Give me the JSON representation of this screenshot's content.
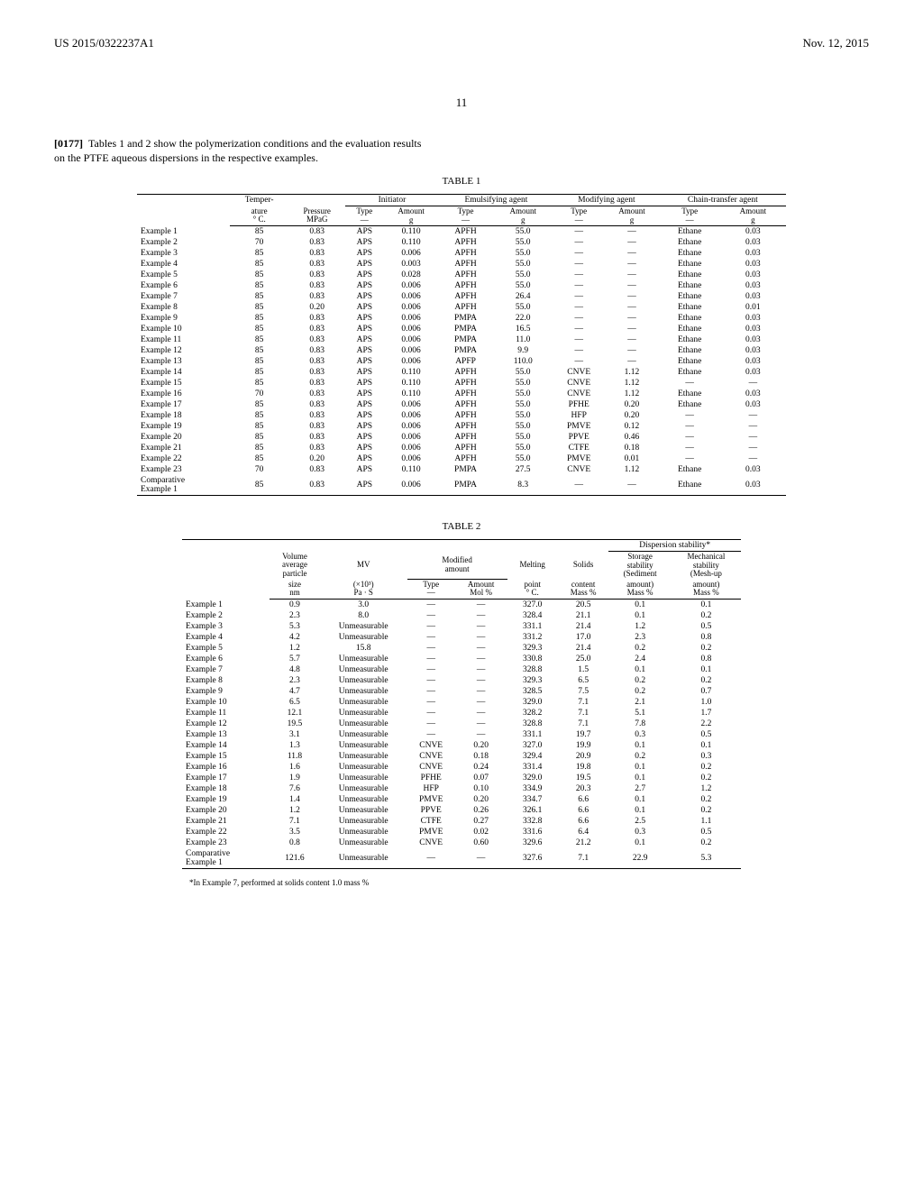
{
  "header": {
    "pub_number": "US 2015/0322237A1",
    "date": "Nov. 12, 2015"
  },
  "page_number": "11",
  "intro": {
    "para_num": "[0177]",
    "text": "Tables 1 and 2 show the polymerization conditions and the evaluation results on the PTFE aqueous dispersions in the respective examples."
  },
  "table1": {
    "title": "TABLE 1",
    "group_headers": [
      "Temper-",
      "Initiator",
      "Emulsifying agent",
      "Modifying agent",
      "Chain-transfer agent"
    ],
    "sub_headers": {
      "temp": [
        "ature",
        "° C."
      ],
      "pressure": [
        "Pressure",
        "MPaG"
      ],
      "init_type": [
        "Type",
        "—"
      ],
      "amount_g": [
        "Amount",
        "g"
      ],
      "emul_type": [
        "Type",
        "—"
      ],
      "emul_amt": [
        "Amount",
        "g"
      ],
      "mod_type": [
        "Type",
        "—"
      ],
      "mod_amt": [
        "Amount",
        "g"
      ],
      "chain_type": [
        "Type",
        "—"
      ],
      "chain_amt": [
        "Amount",
        "g"
      ]
    },
    "rows": [
      [
        "Example 1",
        "85",
        "0.83",
        "APS",
        "0.110",
        "APFH",
        "55.0",
        "—",
        "—",
        "Ethane",
        "0.03"
      ],
      [
        "Example 2",
        "70",
        "0.83",
        "APS",
        "0.110",
        "APFH",
        "55.0",
        "—",
        "—",
        "Ethane",
        "0.03"
      ],
      [
        "Example 3",
        "85",
        "0.83",
        "APS",
        "0.006",
        "APFH",
        "55.0",
        "—",
        "—",
        "Ethane",
        "0.03"
      ],
      [
        "Example 4",
        "85",
        "0.83",
        "APS",
        "0.003",
        "APFH",
        "55.0",
        "—",
        "—",
        "Ethane",
        "0.03"
      ],
      [
        "Example 5",
        "85",
        "0.83",
        "APS",
        "0.028",
        "APFH",
        "55.0",
        "—",
        "—",
        "Ethane",
        "0.03"
      ],
      [
        "Example 6",
        "85",
        "0.83",
        "APS",
        "0.006",
        "APFH",
        "55.0",
        "—",
        "—",
        "Ethane",
        "0.03"
      ],
      [
        "Example 7",
        "85",
        "0.83",
        "APS",
        "0.006",
        "APFH",
        "26.4",
        "—",
        "—",
        "Ethane",
        "0.03"
      ],
      [
        "Example 8",
        "85",
        "0.20",
        "APS",
        "0.006",
        "APFH",
        "55.0",
        "—",
        "—",
        "Ethane",
        "0.01"
      ],
      [
        "Example 9",
        "85",
        "0.83",
        "APS",
        "0.006",
        "PMPA",
        "22.0",
        "—",
        "—",
        "Ethane",
        "0.03"
      ],
      [
        "Example 10",
        "85",
        "0.83",
        "APS",
        "0.006",
        "PMPA",
        "16.5",
        "—",
        "—",
        "Ethane",
        "0.03"
      ],
      [
        "Example 11",
        "85",
        "0.83",
        "APS",
        "0.006",
        "PMPA",
        "11.0",
        "—",
        "—",
        "Ethane",
        "0.03"
      ],
      [
        "Example 12",
        "85",
        "0.83",
        "APS",
        "0.006",
        "PMPA",
        "9.9",
        "—",
        "—",
        "Ethane",
        "0.03"
      ],
      [
        "Example 13",
        "85",
        "0.83",
        "APS",
        "0.006",
        "APFP",
        "110.0",
        "—",
        "—",
        "Ethane",
        "0.03"
      ],
      [
        "Example 14",
        "85",
        "0.83",
        "APS",
        "0.110",
        "APFH",
        "55.0",
        "CNVE",
        "1.12",
        "Ethane",
        "0.03"
      ],
      [
        "Example 15",
        "85",
        "0.83",
        "APS",
        "0.110",
        "APFH",
        "55.0",
        "CNVE",
        "1.12",
        "—",
        "—"
      ],
      [
        "Example 16",
        "70",
        "0.83",
        "APS",
        "0.110",
        "APFH",
        "55.0",
        "CNVE",
        "1.12",
        "Ethane",
        "0.03"
      ],
      [
        "Example 17",
        "85",
        "0.83",
        "APS",
        "0.006",
        "APFH",
        "55.0",
        "PFHE",
        "0.20",
        "Ethane",
        "0.03"
      ],
      [
        "Example 18",
        "85",
        "0.83",
        "APS",
        "0.006",
        "APFH",
        "55.0",
        "HFP",
        "0.20",
        "—",
        "—"
      ],
      [
        "Example 19",
        "85",
        "0.83",
        "APS",
        "0.006",
        "APFH",
        "55.0",
        "PMVE",
        "0.12",
        "—",
        "—"
      ],
      [
        "Example 20",
        "85",
        "0.83",
        "APS",
        "0.006",
        "APFH",
        "55.0",
        "PPVE",
        "0.46",
        "—",
        "—"
      ],
      [
        "Example 21",
        "85",
        "0.83",
        "APS",
        "0.006",
        "APFH",
        "55.0",
        "CTFE",
        "0.18",
        "—",
        "—"
      ],
      [
        "Example 22",
        "85",
        "0.20",
        "APS",
        "0.006",
        "APFH",
        "55.0",
        "PMVE",
        "0.01",
        "—",
        "—"
      ],
      [
        "Example 23",
        "70",
        "0.83",
        "APS",
        "0.110",
        "PMPA",
        "27.5",
        "CNVE",
        "1.12",
        "Ethane",
        "0.03"
      ],
      [
        "Comparative Example 1",
        "85",
        "0.83",
        "APS",
        "0.006",
        "PMPA",
        "8.3",
        "—",
        "—",
        "Ethane",
        "0.03"
      ]
    ]
  },
  "table2": {
    "title": "TABLE 2",
    "group_disp": "Dispersion stability*",
    "sub_headers": {
      "vol": [
        "Volume",
        "average",
        "particle"
      ],
      "mv": "MV",
      "modified": [
        "Modified",
        "amount"
      ],
      "melting": "Melting",
      "solids": "Solids",
      "storage": [
        "Storage",
        "stability",
        "(Sediment"
      ],
      "mech": [
        "Mechanical",
        "stability",
        "(Mesh-up"
      ],
      "size": [
        "size",
        "nm"
      ],
      "mvu": [
        "(×10³)",
        "Pa · S"
      ],
      "mtype": [
        "Type",
        "—"
      ],
      "mamt": [
        "Amount",
        "Mol %"
      ],
      "mp": [
        "point",
        "° C."
      ],
      "sc": [
        "content",
        "Mass %"
      ],
      "sa": [
        "amount)",
        "Mass %"
      ],
      "ma": [
        "amount)",
        "Mass %"
      ]
    },
    "rows": [
      [
        "Example 1",
        "0.9",
        "3.0",
        "—",
        "—",
        "327.0",
        "20.5",
        "0.1",
        "0.1"
      ],
      [
        "Example 2",
        "2.3",
        "8.0",
        "—",
        "—",
        "328.4",
        "21.1",
        "0.1",
        "0.2"
      ],
      [
        "Example 3",
        "5.3",
        "Unmeasurable",
        "—",
        "—",
        "331.1",
        "21.4",
        "1.2",
        "0.5"
      ],
      [
        "Example 4",
        "4.2",
        "Unmeasurable",
        "—",
        "—",
        "331.2",
        "17.0",
        "2.3",
        "0.8"
      ],
      [
        "Example 5",
        "1.2",
        "15.8",
        "—",
        "—",
        "329.3",
        "21.4",
        "0.2",
        "0.2"
      ],
      [
        "Example 6",
        "5.7",
        "Unmeasurable",
        "—",
        "—",
        "330.8",
        "25.0",
        "2.4",
        "0.8"
      ],
      [
        "Example 7",
        "4.8",
        "Unmeasurable",
        "—",
        "—",
        "328.8",
        "1.5",
        "0.1",
        "0.1"
      ],
      [
        "Example 8",
        "2.3",
        "Unmeasurable",
        "—",
        "—",
        "329.3",
        "6.5",
        "0.2",
        "0.2"
      ],
      [
        "Example 9",
        "4.7",
        "Unmeasurable",
        "—",
        "—",
        "328.5",
        "7.5",
        "0.2",
        "0.7"
      ],
      [
        "Example 10",
        "6.5",
        "Unmeasurable",
        "—",
        "—",
        "329.0",
        "7.1",
        "2.1",
        "1.0"
      ],
      [
        "Example 11",
        "12.1",
        "Unmeasurable",
        "—",
        "—",
        "328.2",
        "7.1",
        "5.1",
        "1.7"
      ],
      [
        "Example 12",
        "19.5",
        "Unmeasurable",
        "—",
        "—",
        "328.8",
        "7.1",
        "7.8",
        "2.2"
      ],
      [
        "Example 13",
        "3.1",
        "Unmeasurable",
        "—",
        "—",
        "331.1",
        "19.7",
        "0.3",
        "0.5"
      ],
      [
        "Example 14",
        "1.3",
        "Unmeasurable",
        "CNVE",
        "0.20",
        "327.0",
        "19.9",
        "0.1",
        "0.1"
      ],
      [
        "Example 15",
        "11.8",
        "Unmeasurable",
        "CNVE",
        "0.18",
        "329.4",
        "20.9",
        "0.2",
        "0.3"
      ],
      [
        "Example 16",
        "1.6",
        "Unmeasurable",
        "CNVE",
        "0.24",
        "331.4",
        "19.8",
        "0.1",
        "0.2"
      ],
      [
        "Example 17",
        "1.9",
        "Unmeasurable",
        "PFHE",
        "0.07",
        "329.0",
        "19.5",
        "0.1",
        "0.2"
      ],
      [
        "Example 18",
        "7.6",
        "Unmeasurable",
        "HFP",
        "0.10",
        "334.9",
        "20.3",
        "2.7",
        "1.2"
      ],
      [
        "Example 19",
        "1.4",
        "Unmeasurable",
        "PMVE",
        "0.20",
        "334.7",
        "6.6",
        "0.1",
        "0.2"
      ],
      [
        "Example 20",
        "1.2",
        "Unmeasurable",
        "PPVE",
        "0.26",
        "326.1",
        "6.6",
        "0.1",
        "0.2"
      ],
      [
        "Example 21",
        "7.1",
        "Unmeasurable",
        "CTFE",
        "0.27",
        "332.8",
        "6.6",
        "2.5",
        "1.1"
      ],
      [
        "Example 22",
        "3.5",
        "Unmeasurable",
        "PMVE",
        "0.02",
        "331.6",
        "6.4",
        "0.3",
        "0.5"
      ],
      [
        "Example 23",
        "0.8",
        "Unmeasurable",
        "CNVE",
        "0.60",
        "329.6",
        "21.2",
        "0.1",
        "0.2"
      ],
      [
        "Comparative Example 1",
        "121.6",
        "Unmeasurable",
        "—",
        "—",
        "327.6",
        "7.1",
        "22.9",
        "5.3"
      ]
    ]
  },
  "footnote": "*In Example 7, performed at solids content 1.0 mass %"
}
